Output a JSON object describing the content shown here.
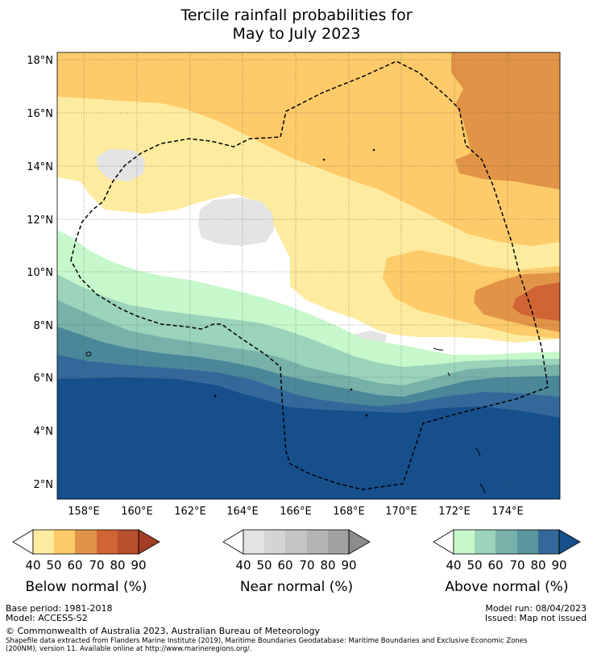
{
  "title": {
    "line1": "Tercile rainfall probabilities for",
    "line2": "May to July 2023"
  },
  "map": {
    "lat_labels": [
      "18°N",
      "16°N",
      "14°N",
      "12°N",
      "10°N",
      "8°N",
      "6°N",
      "4°N",
      "2°N"
    ],
    "lon_labels": [
      "158°E",
      "160°E",
      "162°E",
      "164°E",
      "166°E",
      "168°E",
      "170°E",
      "172°E",
      "174°E"
    ],
    "colors": {
      "white": "#ffffff",
      "near40": "#e4e4e4",
      "below40": "#fdeb9f",
      "below50": "#fdcb6a",
      "below60": "#e19448",
      "below70": "#d06434",
      "above40": "#c7f8cb",
      "above50": "#9bd3bb",
      "above60": "#77b1aa",
      "above70": "#4a8799",
      "above80": "#35689a",
      "above90": "#164f8c",
      "boundary": "#000000"
    }
  },
  "colorbars": {
    "below": {
      "title": "Below normal (%)",
      "ticks": [
        "40",
        "50",
        "60",
        "70",
        "80",
        "90"
      ],
      "colors": [
        "#fdeb9f",
        "#fdcb6a",
        "#e19448",
        "#d06434",
        "#b84e2c"
      ],
      "extend_color": "#a33d24"
    },
    "near": {
      "title": "Near normal (%)",
      "ticks": [
        "40",
        "50",
        "60",
        "70",
        "80",
        "90"
      ],
      "colors": [
        "#e4e4e4",
        "#d4d4d4",
        "#c4c4c4",
        "#b4b4b4",
        "#a2a2a2"
      ],
      "extend_color": "#8c8c8c"
    },
    "above": {
      "title": "Above normal (%)",
      "ticks": [
        "40",
        "50",
        "60",
        "70",
        "80",
        "90"
      ],
      "colors": [
        "#c7f8cb",
        "#9bd3bb",
        "#77b1aa",
        "#5a969f",
        "#35689a"
      ],
      "extend_color": "#164f8c"
    }
  },
  "footer": {
    "base_period": "Base period: 1981-2018",
    "model": "Model: ACCESS-S2",
    "model_run": "Model run: 08/04/2023",
    "issued": "Issued: Map not issued",
    "copyright": "© Commonwealth of Australia 2023, Australian Bureau of Meteorology",
    "shapefile_line1": "Shapefile data extracted from Flanders Marine Institute (2019), Maritime Boundaries Geodatabase: Maritime Boundaries and Exclusive Economic Zones",
    "shapefile_line2": "(200NM), version 11. Available online at http://www.marineregions.org/."
  }
}
